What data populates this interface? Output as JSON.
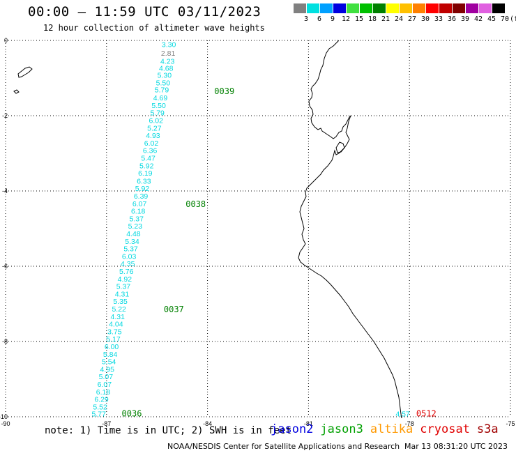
{
  "header": {
    "title": "00:00 – 11:59 UTC 03/11/2023",
    "subtitle": "12 hour collection of altimeter wave heights"
  },
  "legend": {
    "unit": "(ft)",
    "bins": [
      {
        "label": "3",
        "color": "#808080"
      },
      {
        "label": "6",
        "color": "#00e0e0"
      },
      {
        "label": "9",
        "color": "#00a0ff"
      },
      {
        "label": "12",
        "color": "#0000e0"
      },
      {
        "label": "15",
        "color": "#40e040"
      },
      {
        "label": "18",
        "color": "#00c000"
      },
      {
        "label": "21",
        "color": "#008000"
      },
      {
        "label": "24",
        "color": "#ffff00"
      },
      {
        "label": "27",
        "color": "#ffc000"
      },
      {
        "label": "30",
        "color": "#ff8000"
      },
      {
        "label": "33",
        "color": "#ff0000"
      },
      {
        "label": "36",
        "color": "#c00000"
      },
      {
        "label": "39",
        "color": "#800000"
      },
      {
        "label": "42",
        "color": "#a000a0"
      },
      {
        "label": "45",
        "color": "#e060e0"
      },
      {
        "label": "70",
        "color": "#000000"
      }
    ]
  },
  "map": {
    "lon_range": [
      -90,
      -75
    ],
    "lat_range": [
      -10,
      0
    ],
    "x_ticks": [
      "-90",
      "-87",
      "-84",
      "-81",
      "-78",
      "-75"
    ],
    "y_ticks": [
      "0",
      "-2",
      "-4",
      "-6",
      "-8",
      "-10"
    ],
    "gridlines": "dotted",
    "land": "coastline outline of Ecuador and Peru with islands near -90"
  },
  "tracks": [
    {
      "satellite": "jason3",
      "color": "#00d8e0",
      "points": [
        {
          "lon": -85.15,
          "lat": -0.1,
          "swh": "3.30"
        },
        {
          "lon": -85.17,
          "lat": -0.33,
          "swh": "2.81",
          "color": "#808080"
        },
        {
          "lon": -85.19,
          "lat": -0.55,
          "swh": "4.23"
        },
        {
          "lon": -85.23,
          "lat": -0.73,
          "swh": "4.68"
        },
        {
          "lon": -85.28,
          "lat": -0.92,
          "swh": "5.30"
        },
        {
          "lon": -85.32,
          "lat": -1.12,
          "swh": "5.50"
        },
        {
          "lon": -85.36,
          "lat": -1.31,
          "swh": "5.79"
        },
        {
          "lon": -85.4,
          "lat": -1.52,
          "swh": "4.69"
        },
        {
          "lon": -85.45,
          "lat": -1.72,
          "swh": "5.50"
        },
        {
          "lon": -85.49,
          "lat": -1.92,
          "swh": "5.79"
        },
        {
          "lon": -85.53,
          "lat": -2.12,
          "swh": "6.02"
        },
        {
          "lon": -85.58,
          "lat": -2.32,
          "swh": "5.27"
        },
        {
          "lon": -85.62,
          "lat": -2.52,
          "swh": "4.93"
        },
        {
          "lon": -85.67,
          "lat": -2.72,
          "swh": "6.02"
        },
        {
          "lon": -85.71,
          "lat": -2.92,
          "swh": "6.36"
        },
        {
          "lon": -85.76,
          "lat": -3.12,
          "swh": "5.47"
        },
        {
          "lon": -85.81,
          "lat": -3.32,
          "swh": "5.92"
        },
        {
          "lon": -85.85,
          "lat": -3.52,
          "swh": "6.19"
        },
        {
          "lon": -85.89,
          "lat": -3.73,
          "swh": "6.33"
        },
        {
          "lon": -85.94,
          "lat": -3.93,
          "swh": "5.92"
        },
        {
          "lon": -85.98,
          "lat": -4.13,
          "swh": "6.39"
        },
        {
          "lon": -86.02,
          "lat": -4.33,
          "swh": "6.07"
        },
        {
          "lon": -86.06,
          "lat": -4.53,
          "swh": "6.18"
        },
        {
          "lon": -86.11,
          "lat": -4.73,
          "swh": "5.37"
        },
        {
          "lon": -86.15,
          "lat": -4.93,
          "swh": "5.23"
        },
        {
          "lon": -86.2,
          "lat": -5.13,
          "swh": "4.48"
        },
        {
          "lon": -86.24,
          "lat": -5.33,
          "swh": "5.34"
        },
        {
          "lon": -86.28,
          "lat": -5.53,
          "swh": "5.37"
        },
        {
          "lon": -86.33,
          "lat": -5.73,
          "swh": "6.03"
        },
        {
          "lon": -86.37,
          "lat": -5.93,
          "swh": "4.35"
        },
        {
          "lon": -86.41,
          "lat": -6.13,
          "swh": "5.76"
        },
        {
          "lon": -86.46,
          "lat": -6.33,
          "swh": "4.92"
        },
        {
          "lon": -86.5,
          "lat": -6.53,
          "swh": "5.37"
        },
        {
          "lon": -86.54,
          "lat": -6.73,
          "swh": "4.31"
        },
        {
          "lon": -86.59,
          "lat": -6.93,
          "swh": "5.35"
        },
        {
          "lon": -86.63,
          "lat": -7.13,
          "swh": "5.22"
        },
        {
          "lon": -86.67,
          "lat": -7.33,
          "swh": "4.31"
        },
        {
          "lon": -86.72,
          "lat": -7.53,
          "swh": "4.04"
        },
        {
          "lon": -86.76,
          "lat": -7.73,
          "swh": "3.75"
        },
        {
          "lon": -86.8,
          "lat": -7.93,
          "swh": "5.17"
        },
        {
          "lon": -86.85,
          "lat": -8.13,
          "swh": "6.00"
        },
        {
          "lon": -86.89,
          "lat": -8.33,
          "swh": "5.84"
        },
        {
          "lon": -86.93,
          "lat": -8.53,
          "swh": "5.54"
        },
        {
          "lon": -86.98,
          "lat": -8.73,
          "swh": "4.95"
        },
        {
          "lon": -87.02,
          "lat": -8.93,
          "swh": "5.07"
        },
        {
          "lon": -87.06,
          "lat": -9.13,
          "swh": "6.07"
        },
        {
          "lon": -87.1,
          "lat": -9.33,
          "swh": "6.18"
        },
        {
          "lon": -87.15,
          "lat": -9.53,
          "swh": "6.29"
        },
        {
          "lon": -87.19,
          "lat": -9.73,
          "swh": "5.52"
        },
        {
          "lon": -87.23,
          "lat": -9.92,
          "swh": "5.77"
        }
      ],
      "time_labels": [
        {
          "lon": -83.5,
          "lat": -1.35,
          "text": "0039"
        },
        {
          "lon": -84.35,
          "lat": -4.35,
          "text": "0038"
        },
        {
          "lon": -85.0,
          "lat": -7.15,
          "text": "0037"
        },
        {
          "lon": -86.25,
          "lat": -9.92,
          "text": "0036"
        }
      ]
    },
    {
      "satellite": "cryosat",
      "points": [
        {
          "lon": -78.2,
          "lat": -9.92,
          "swh": "4.57",
          "color": "#00d8e0"
        }
      ],
      "time_labels": [
        {
          "lon": -77.5,
          "lat": -9.92,
          "text": "0512",
          "color": "#e00000"
        }
      ]
    }
  ],
  "footer": {
    "note": "note: 1) Time is in UTC; 2) SWH is in feet",
    "satellites": [
      {
        "name": "jason2",
        "color": "#0000e0"
      },
      {
        "name": "jason3",
        "color": "#00a000"
      },
      {
        "name": "altika",
        "color": "#ff9900"
      },
      {
        "name": "cryosat",
        "color": "#e00000"
      },
      {
        "name": "s3a",
        "color": "#a00000"
      }
    ],
    "credit": "NOAA/NESDIS Center for Satellite Applications and Research",
    "timestamp": "Mar 13 08:31:20 UTC 2023"
  }
}
